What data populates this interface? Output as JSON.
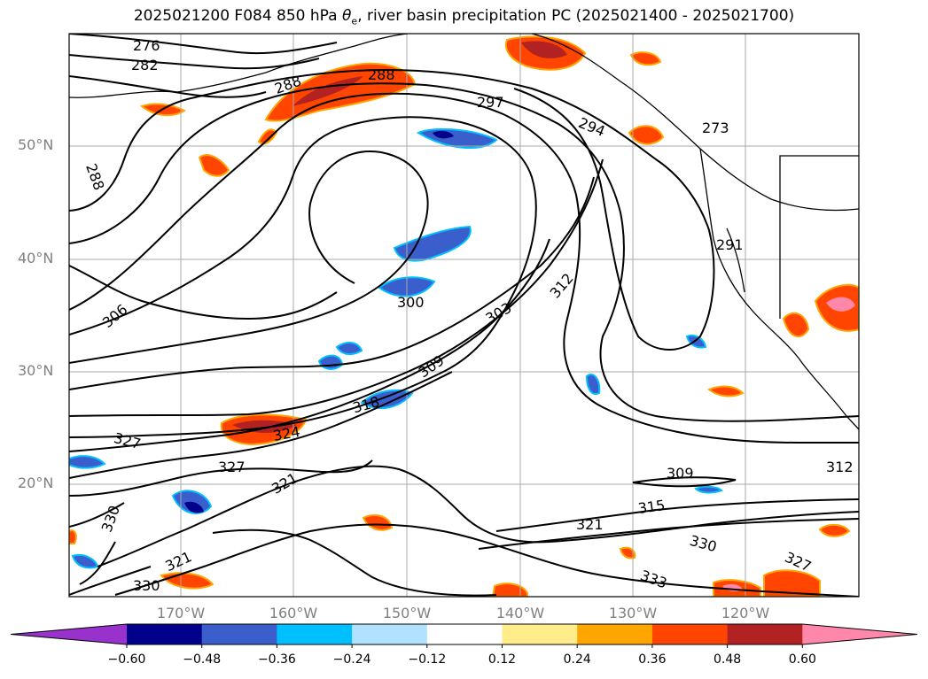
{
  "title_main": "2025021200 F084 850 hPa ",
  "title_symbol": "θ",
  "title_sub": "e",
  "title_rest": ", river basin precipitation PC (2025021400 - 2025021700)",
  "lat_labels": [
    "50°N",
    "40°N",
    "30°N",
    "20°N"
  ],
  "lon_labels": [
    "170°W",
    "160°W",
    "150°W",
    "140°W",
    "130°W",
    "120°W"
  ],
  "colorbar": {
    "colors": [
      "#9932CC",
      "#00008B",
      "#3A5FCD",
      "#00BFFF",
      "#B0E2FF",
      "#FFFFFF",
      "#FFEC8B",
      "#FFA500",
      "#FF4500",
      "#B22222",
      "#FF88AA"
    ],
    "tick_labels": [
      "−0.60",
      "−0.48",
      "−0.36",
      "−0.24",
      "−0.12",
      "0.12",
      "0.24",
      "0.36",
      "0.48",
      "0.60"
    ]
  },
  "contour_labels": [
    "276",
    "282",
    "288",
    "288",
    "288",
    "297",
    "294",
    "273",
    "291",
    "306",
    "300",
    "303",
    "312",
    "309",
    "318",
    "324",
    "327",
    "327",
    "321",
    "321",
    "330",
    "330",
    "309",
    "315",
    "321",
    "330",
    "327",
    "333",
    "312"
  ]
}
